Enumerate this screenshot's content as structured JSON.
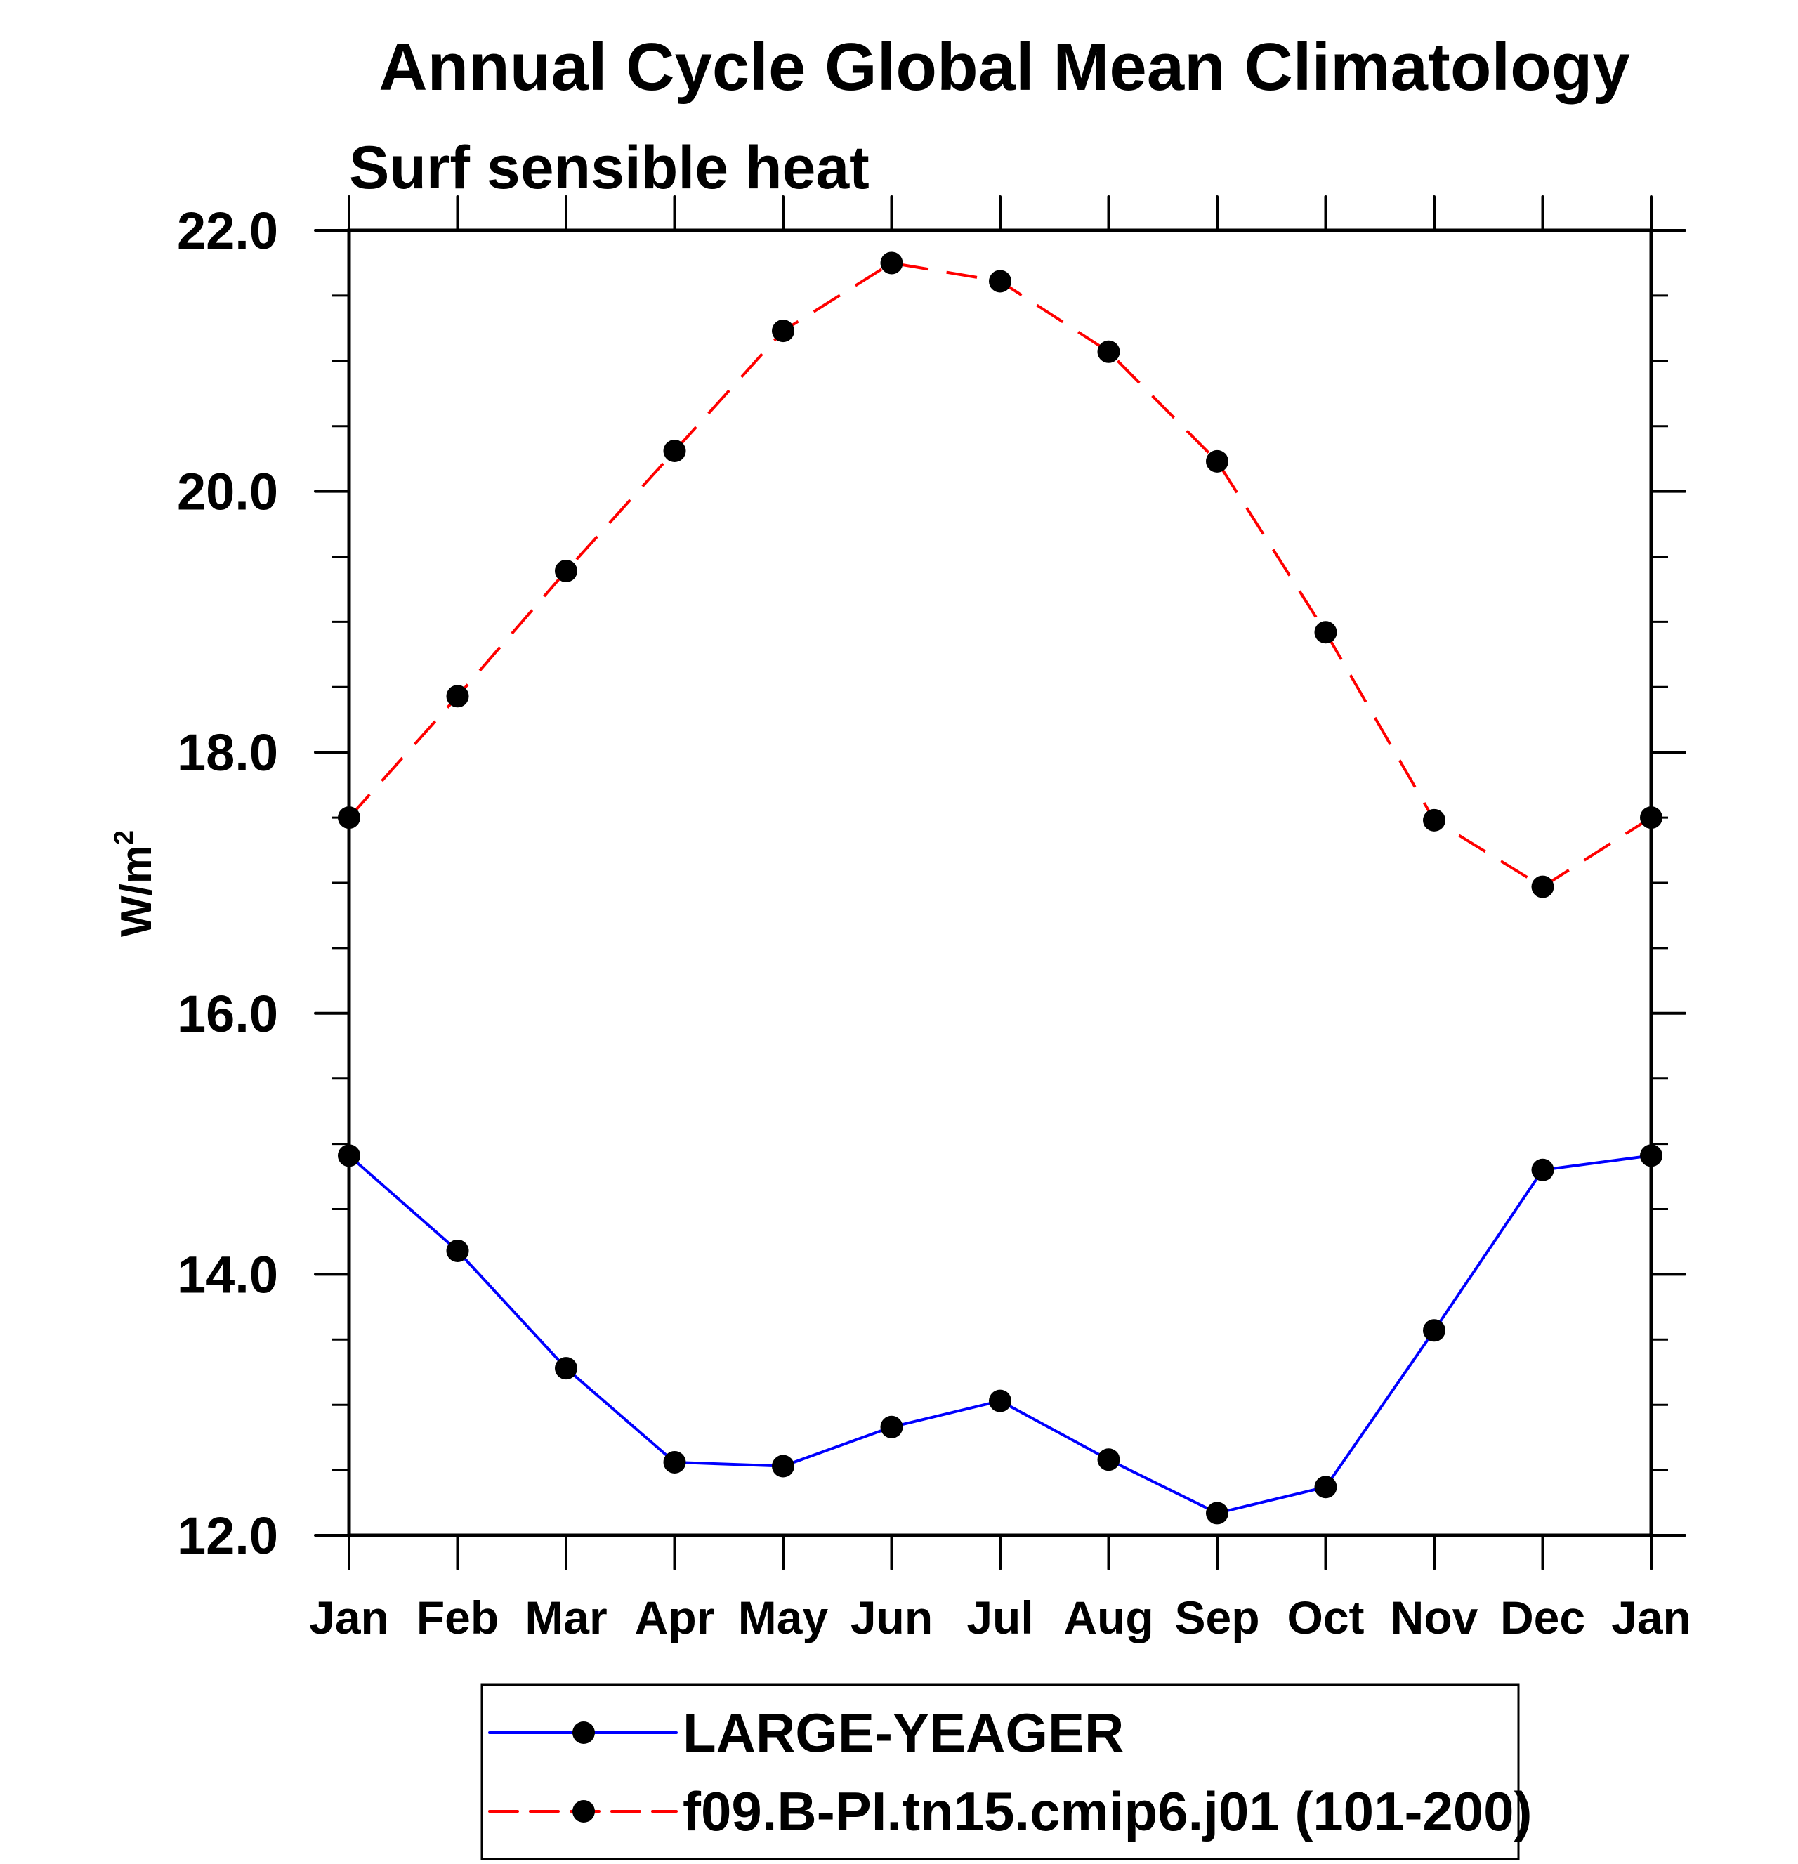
{
  "chart_data": {
    "type": "line",
    "title": "Annual Cycle Global Mean Climatology",
    "subtitle": "Surf sensible heat",
    "xlabel": "",
    "ylabel": "W/m",
    "ylabel_superscript": "2",
    "categories": [
      "Jan",
      "Feb",
      "Mar",
      "Apr",
      "May",
      "Jun",
      "Jul",
      "Aug",
      "Sep",
      "Oct",
      "Nov",
      "Dec",
      "Jan"
    ],
    "ylim": [
      12.0,
      22.0
    ],
    "y_major_ticks": [
      12.0,
      14.0,
      16.0,
      18.0,
      20.0,
      22.0
    ],
    "y_tick_labels": [
      "12.0",
      "14.0",
      "16.0",
      "18.0",
      "20.0",
      "22.0"
    ],
    "y_minor_step": 0.5,
    "grid": false,
    "legend_position": "bottom-center",
    "series": [
      {
        "name": "LARGE-YEAGER",
        "color": "#0000ff",
        "line_style": "solid",
        "marker": "filled-circle",
        "marker_color": "#000000",
        "values": [
          14.91,
          14.18,
          13.28,
          12.56,
          12.53,
          12.83,
          13.03,
          12.58,
          12.17,
          12.37,
          13.57,
          14.8,
          14.91
        ]
      },
      {
        "name": "f09.B-PI.tn15.cmip6.j01 (101-200)",
        "color": "#ff0000",
        "line_style": "dashed",
        "marker": "filled-circle",
        "marker_color": "#000000",
        "values": [
          17.5,
          18.43,
          19.39,
          20.31,
          21.23,
          21.75,
          21.61,
          21.07,
          20.23,
          18.92,
          17.48,
          16.97,
          17.5
        ]
      }
    ]
  }
}
